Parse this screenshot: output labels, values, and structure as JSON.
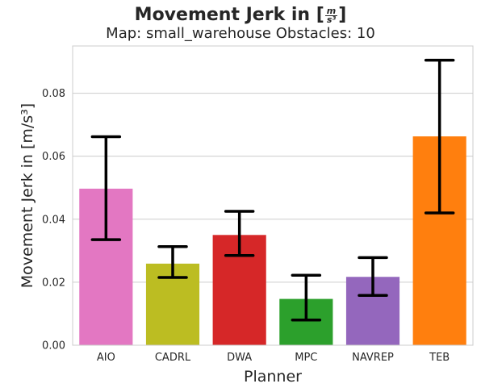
{
  "chart_data": {
    "type": "bar",
    "title": "Movement Jerk in [",
    "title_unit_num": "m",
    "title_unit_den": "s³",
    "title_suffix": "]",
    "subtitle": "Map: small_warehouse Obstacles: 10",
    "xlabel": "Planner",
    "ylabel": "Movement Jerk in [m/s³]",
    "categories": [
      "AIO",
      "CADRL",
      "DWA",
      "MPC",
      "NAVREP",
      "TEB"
    ],
    "values": [
      0.0497,
      0.0259,
      0.035,
      0.0147,
      0.0217,
      0.0663
    ],
    "error_low": [
      0.0335,
      0.0215,
      0.0285,
      0.008,
      0.0158,
      0.042
    ],
    "error_high": [
      0.0662,
      0.0313,
      0.0425,
      0.0222,
      0.0278,
      0.0905
    ],
    "colors": [
      "#e377c2",
      "#bcbd22",
      "#d62728",
      "#2ca02c",
      "#9467bd",
      "#ff7f0e"
    ],
    "ylim": [
      0,
      0.095
    ],
    "yticks": [
      "0.00",
      "0.02",
      "0.04",
      "0.06",
      "0.08"
    ],
    "grid": true,
    "gridColor": "#cccccc",
    "axisColor": "#cccccc",
    "background": "#ffffff"
  }
}
